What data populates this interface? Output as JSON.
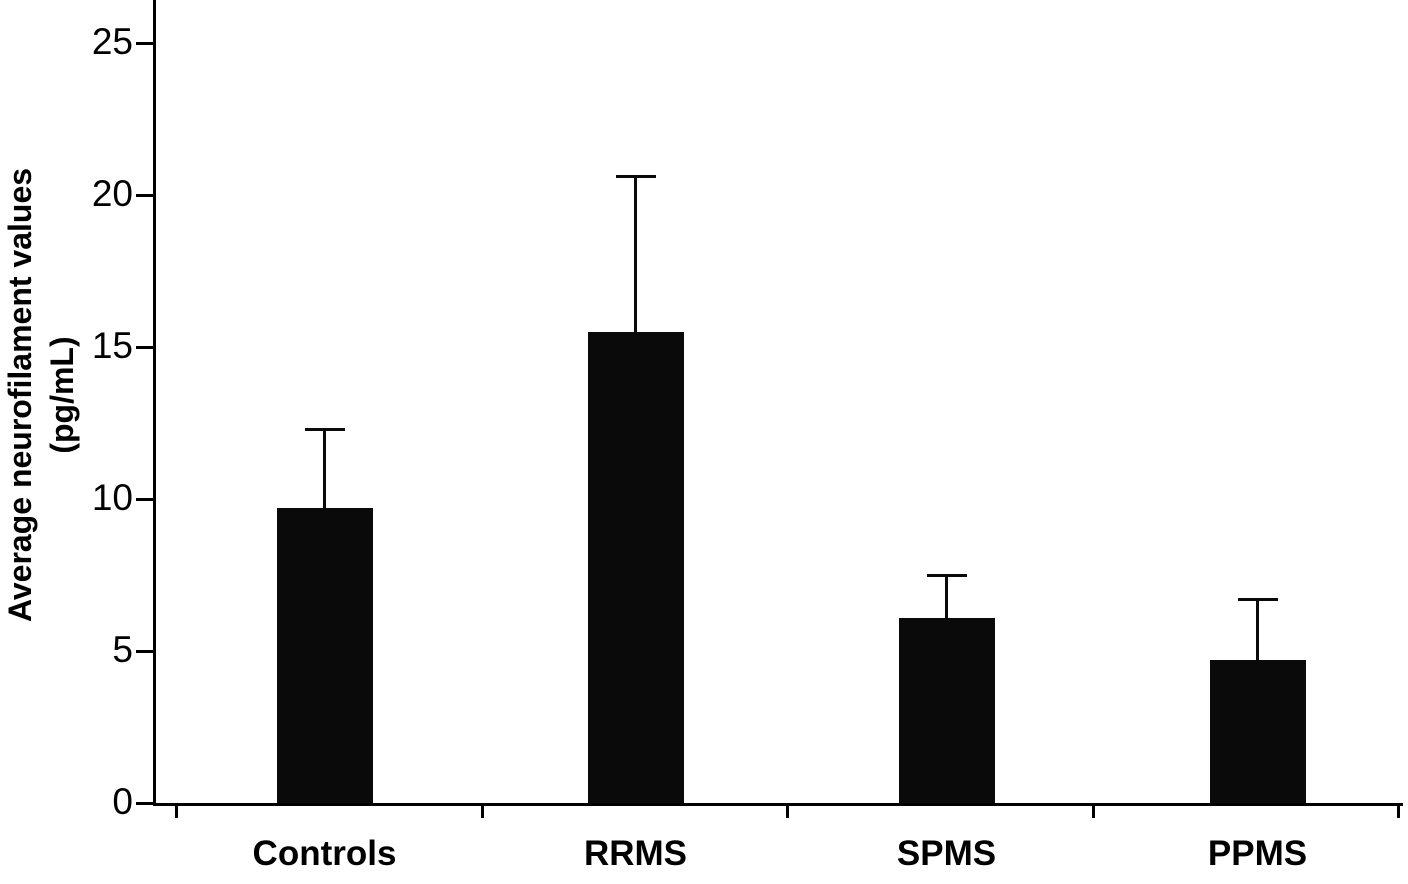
{
  "chart_data": {
    "type": "bar",
    "title": "",
    "categories": [
      "Controls",
      "RRMS",
      "SPMS",
      "PPMS"
    ],
    "values": [
      9.7,
      15.5,
      6.1,
      4.7
    ],
    "error_upper": [
      2.6,
      5.1,
      1.4,
      2.0
    ],
    "error_bar_tops": [
      12.3,
      20.6,
      7.5,
      6.7
    ],
    "ylabel_line1": "Average neurofilament values",
    "ylabel_line2": "(pg/mL)",
    "xlabel": "",
    "yticks": [
      0,
      5,
      10,
      15,
      20,
      25
    ],
    "ylim": [
      0,
      26.4
    ],
    "bar_color": "#0a0a0a",
    "axis_color": "#000000",
    "grid": false,
    "legend": false
  }
}
